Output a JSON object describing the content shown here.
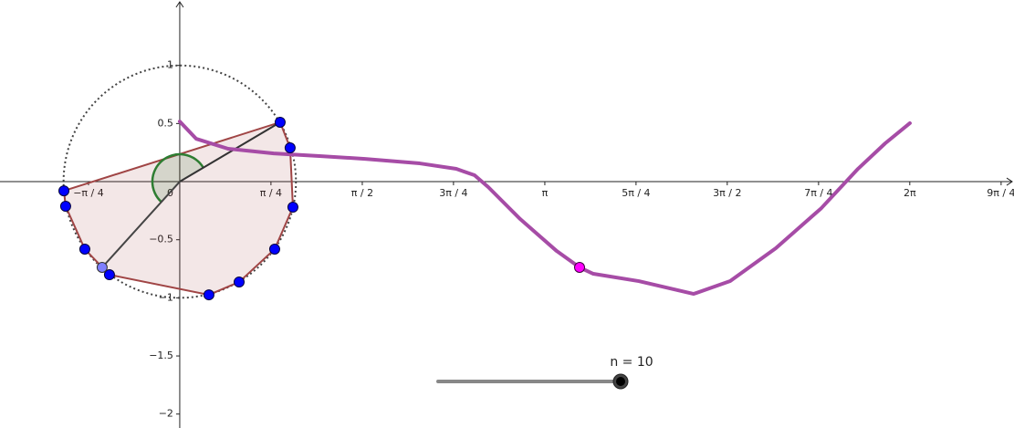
{
  "axes": {
    "xlim": [
      -1.547,
      7.18
    ],
    "ylim": [
      -2.12,
      1.563
    ],
    "xticks": [
      {
        "value": -0.785,
        "label": "−π / 4"
      },
      {
        "value": 0.785,
        "label": "π / 4"
      },
      {
        "value": 1.571,
        "label": "π / 2"
      },
      {
        "value": 2.356,
        "label": "3π / 4"
      },
      {
        "value": 3.142,
        "label": "π"
      },
      {
        "value": 3.927,
        "label": "5π / 4"
      },
      {
        "value": 4.712,
        "label": "3π / 2"
      },
      {
        "value": 5.498,
        "label": "7π / 4"
      },
      {
        "value": 6.283,
        "label": "2π"
      },
      {
        "value": 7.069,
        "label": "9π / 4"
      }
    ],
    "yticks": [
      1,
      0.5,
      {
        "value": -0.5,
        "label": "−0.5"
      },
      {
        "value": -1,
        "label": "−1"
      },
      {
        "value": -1.5,
        "label": "−1.5"
      },
      {
        "value": -2,
        "label": "−2"
      }
    ],
    "origin_label": "0"
  },
  "unit_circle": {
    "radius": 1
  },
  "polygon": {
    "points": [
      {
        "x": 0.864,
        "y": 0.511
      },
      {
        "x": 0.95,
        "y": 0.291
      },
      {
        "x": 0.974,
        "y": -0.22
      },
      {
        "x": 0.817,
        "y": -0.581
      },
      {
        "x": 0.511,
        "y": -0.864
      },
      {
        "x": 0.251,
        "y": -0.974
      },
      {
        "x": -0.605,
        "y": -0.801
      },
      {
        "x": -0.817,
        "y": -0.581
      },
      {
        "x": -0.982,
        "y": -0.212
      },
      {
        "x": -0.997,
        "y": -0.079
      }
    ]
  },
  "moving_point": {
    "x": -0.668,
    "y": -0.738
  },
  "curve": {
    "x": [
      0,
      0.141,
      0.416,
      0.809,
      1.202,
      1.595,
      2.066,
      2.38,
      2.537,
      2.655,
      2.93,
      3.244,
      3.441,
      3.559,
      3.951,
      4.423,
      4.737,
      5.13,
      5.522,
      5.837,
      6.072,
      6.284
    ],
    "y": [
      0.518,
      0.369,
      0.283,
      0.243,
      0.22,
      0.196,
      0.157,
      0.11,
      0.055,
      -0.047,
      -0.322,
      -0.597,
      -0.738,
      -0.793,
      -0.856,
      -0.966,
      -0.856,
      -0.573,
      -0.228,
      0.11,
      0.33,
      0.503
    ]
  },
  "curve_point": {
    "x": 3.441,
    "y": -0.738
  },
  "slider": {
    "label": "n = 10"
  }
}
